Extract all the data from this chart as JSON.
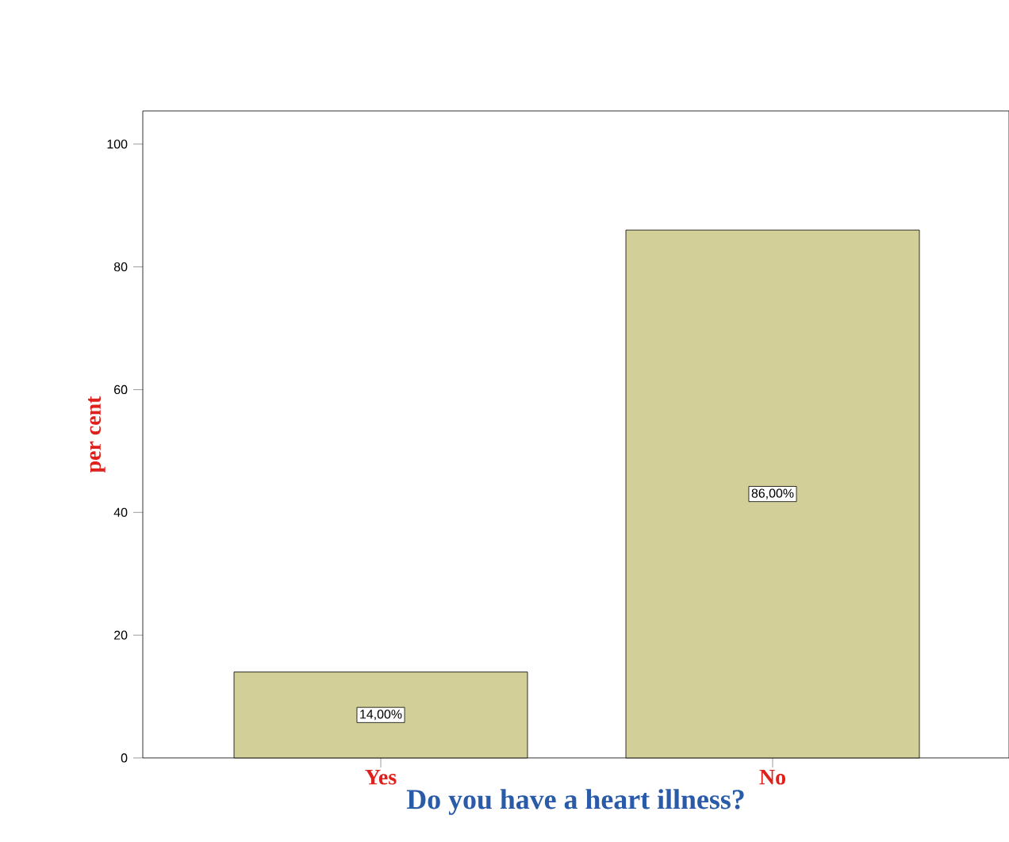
{
  "chart_data": {
    "type": "bar",
    "xlabel": "Do you have a heart illness?",
    "ylabel": "per cent",
    "categories": [
      "Yes",
      "No"
    ],
    "values": [
      14,
      86
    ],
    "color": "#d3cf98",
    "value_labels": [
      "14,00%",
      "86,00%"
    ],
    "ylim": [
      0,
      105.4
    ],
    "yticks": [
      0,
      20,
      40,
      60,
      80,
      100
    ]
  }
}
